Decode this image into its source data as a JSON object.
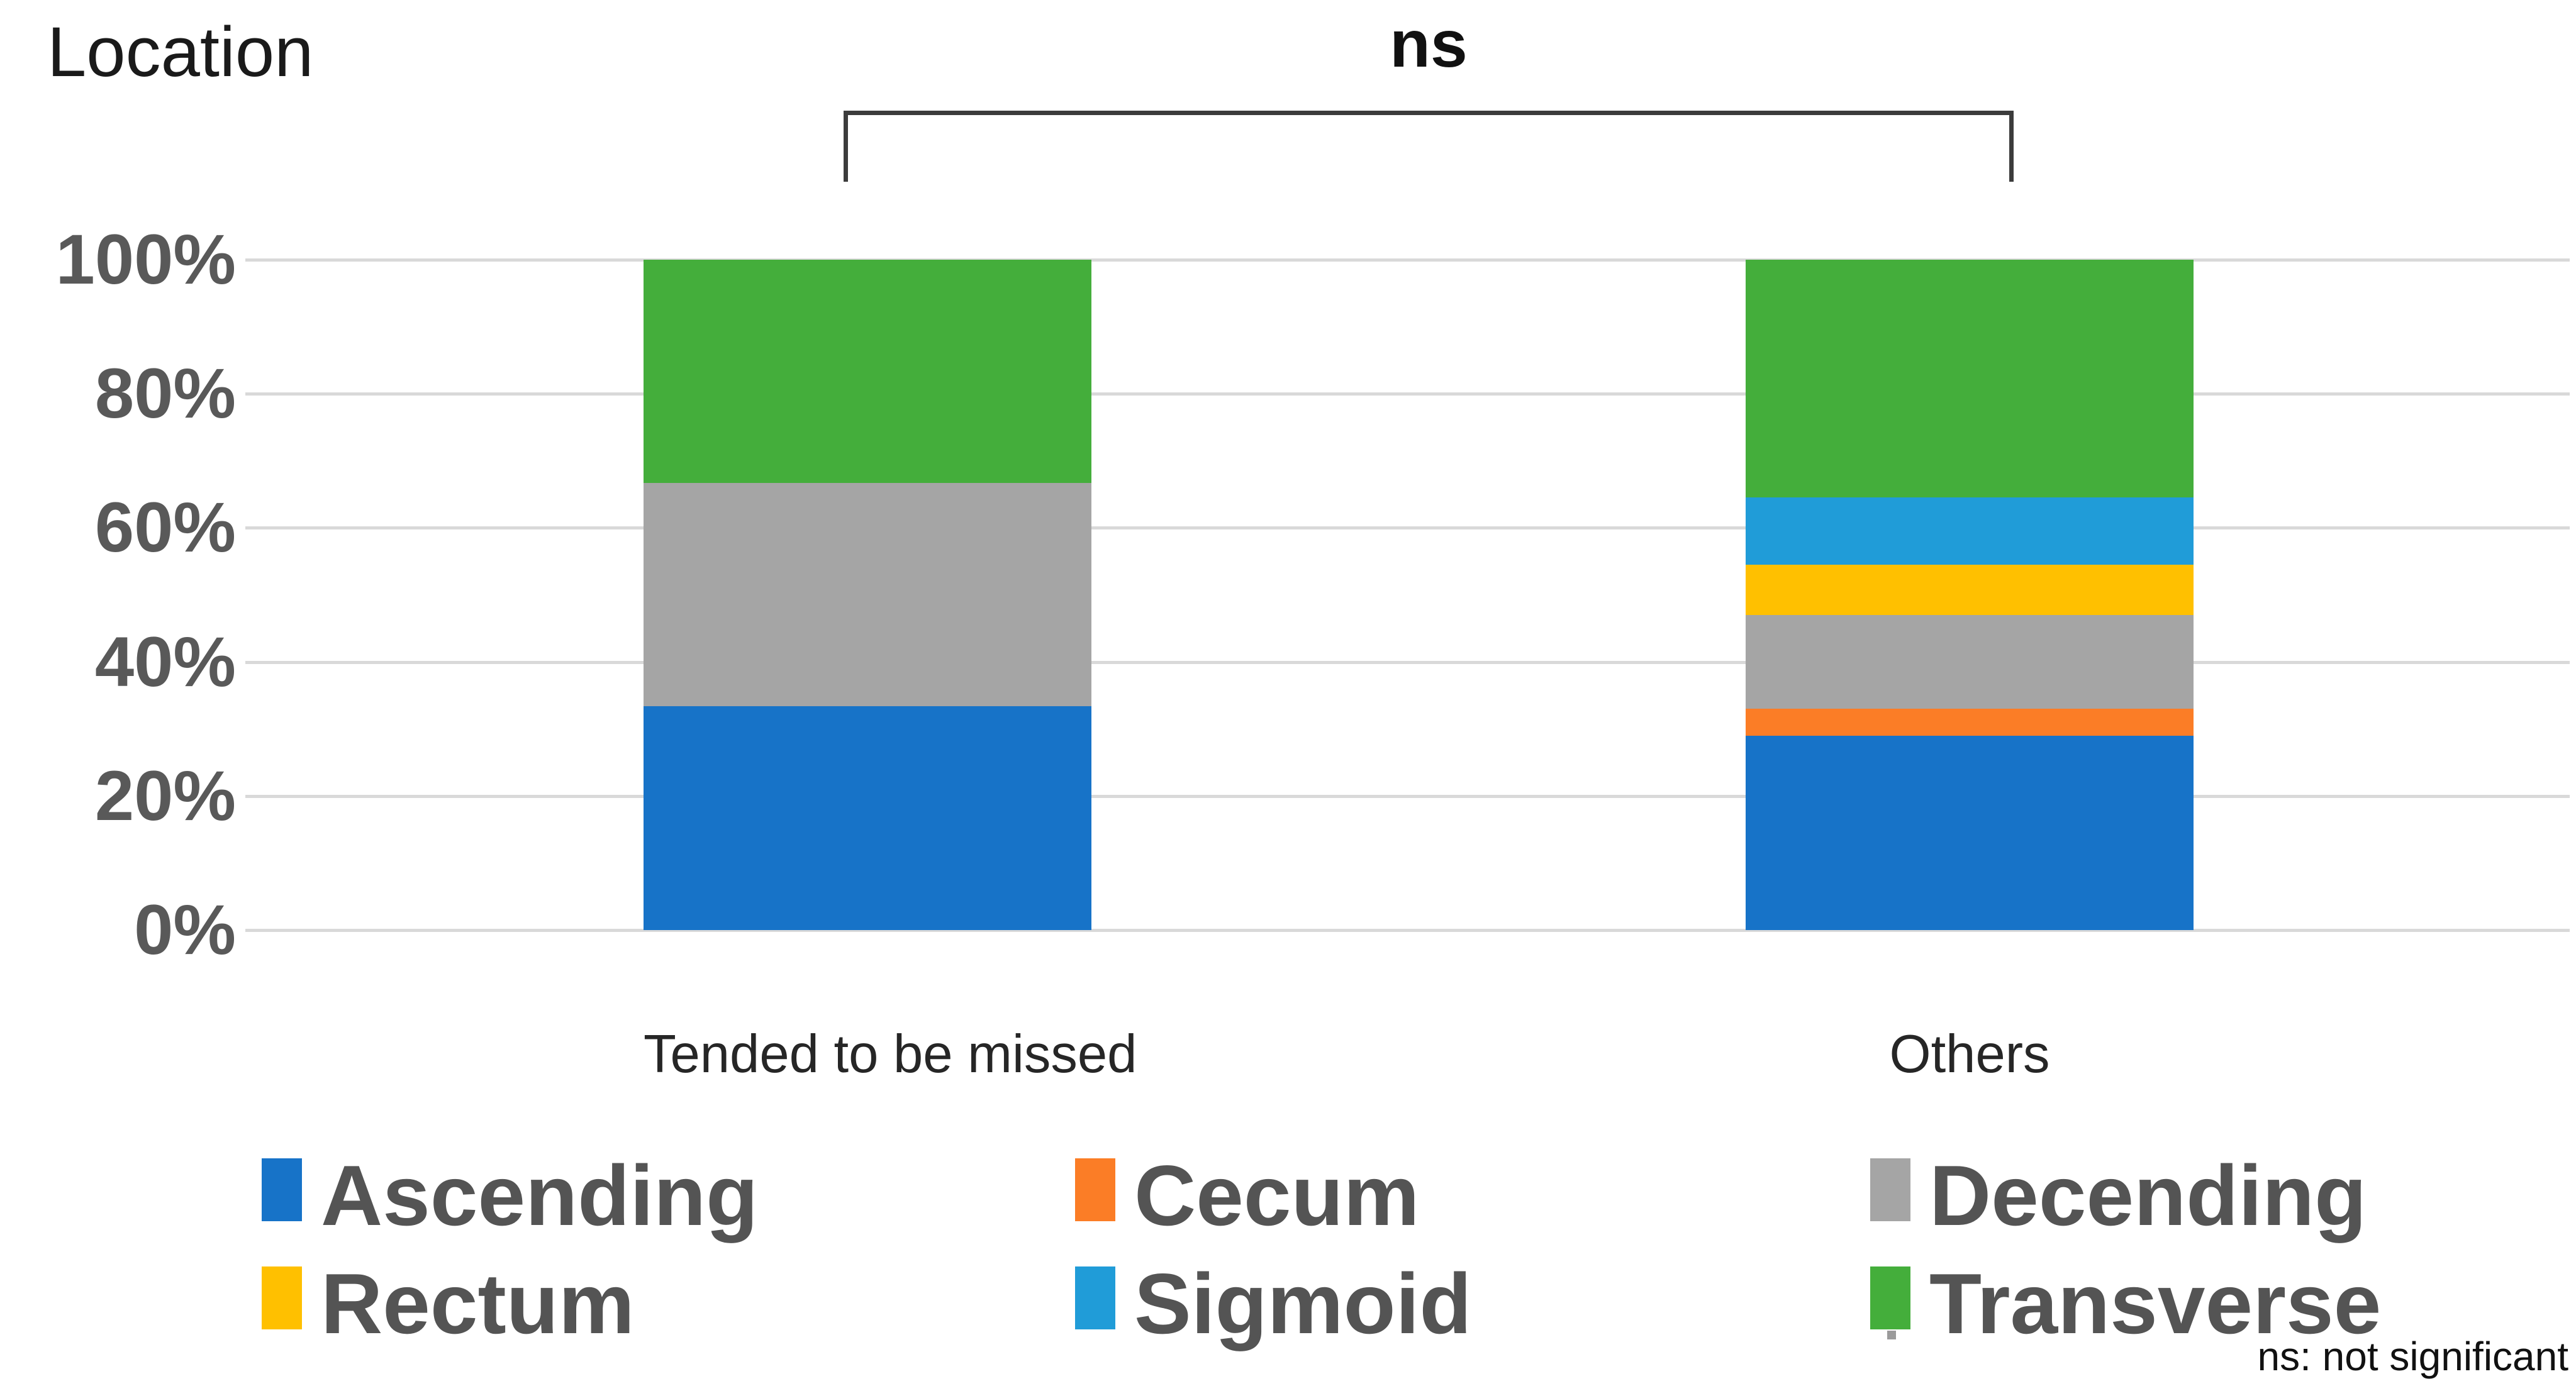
{
  "title": "Location",
  "significance": {
    "label": "ns",
    "note": "ns: not significant"
  },
  "y_axis": {
    "ticks": [
      "100%",
      "80%",
      "60%",
      "40%",
      "20%",
      "0%"
    ]
  },
  "chart_data": {
    "type": "bar",
    "stacked": true,
    "unit": "percent",
    "title": "Location",
    "categories": [
      "Tended to be missed",
      "Others"
    ],
    "series": [
      {
        "name": "Ascending",
        "color": "#1773C8",
        "values": [
          33.4,
          29.0
        ]
      },
      {
        "name": "Cecum",
        "color": "#FB7D26",
        "values": [
          0.0,
          4.0
        ]
      },
      {
        "name": "Decending",
        "color": "#A5A5A5",
        "values": [
          33.3,
          14.0
        ]
      },
      {
        "name": "Rectum",
        "color": "#FFC000",
        "values": [
          0.0,
          7.5
        ]
      },
      {
        "name": "Sigmoid",
        "color": "#209CD8",
        "values": [
          0.0,
          10.0
        ]
      },
      {
        "name": "Transverse",
        "color": "#44AE3B",
        "values": [
          33.3,
          35.5
        ]
      }
    ],
    "ylim": [
      0,
      100
    ],
    "grid": true,
    "gridline_color": "#D9D9D9",
    "legend_position": "bottom",
    "annotation": {
      "text": "ns",
      "between": [
        "Tended to be missed",
        "Others"
      ]
    }
  }
}
